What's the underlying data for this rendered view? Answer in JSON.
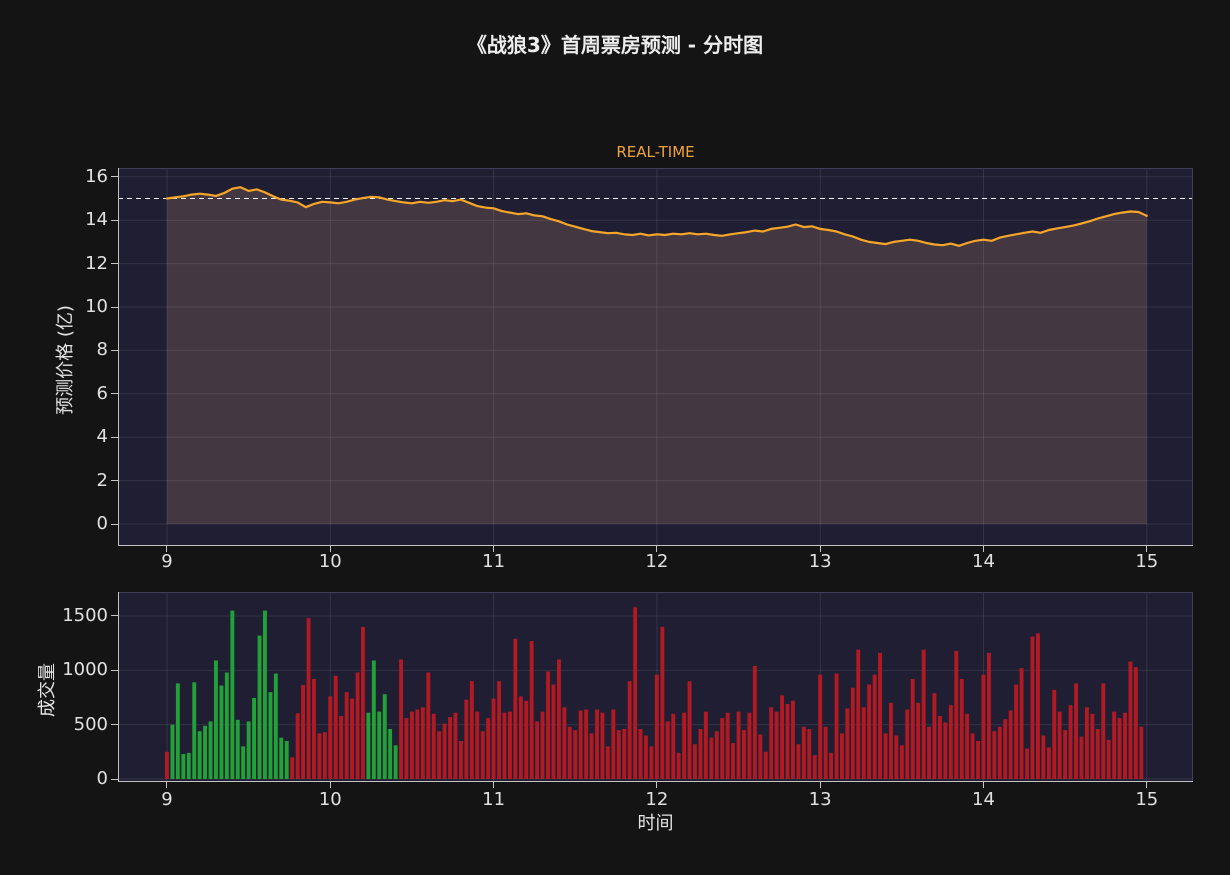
{
  "page": {
    "title": "《战狼3》首周票房预测 - 分时图",
    "subtitle": "REAL-TIME"
  },
  "colors": {
    "background": "#141414",
    "plot_background": "#201e33",
    "line": "#f7a62a",
    "area_fill": "rgba(255,195,150,0.16)",
    "up": "#21a138",
    "down": "#b11a22",
    "reference_line": "#ffffff",
    "grid": "rgba(255,255,255,0.09)",
    "spine_bright": "#c4c4c4",
    "spine_faint": "#403e58",
    "text": "#e0e0e0",
    "subtitle_text": "#f0a43a"
  },
  "chart_data": [
    {
      "type": "line",
      "title": "REAL-TIME",
      "xlabel": "",
      "ylabel": "预测价格 (亿)",
      "x_ticks": [
        9,
        10,
        11,
        12,
        13,
        14,
        15
      ],
      "y_ticks": [
        0,
        2,
        4,
        6,
        8,
        10,
        12,
        14,
        16
      ],
      "xlim": [
        8.7,
        15.28
      ],
      "ylim": [
        -1,
        16.4
      ],
      "reference_line_y": 15,
      "area_fill": true,
      "grid": true,
      "x_start": 9,
      "x_step": 0.05,
      "values": [
        15.0,
        15.05,
        15.1,
        15.18,
        15.22,
        15.18,
        15.12,
        15.25,
        15.45,
        15.52,
        15.35,
        15.42,
        15.28,
        15.1,
        14.95,
        14.9,
        14.82,
        14.6,
        14.75,
        14.85,
        14.82,
        14.78,
        14.85,
        14.95,
        15.02,
        15.08,
        15.05,
        14.95,
        14.88,
        14.82,
        14.78,
        14.85,
        14.8,
        14.85,
        14.92,
        14.88,
        14.95,
        14.8,
        14.65,
        14.58,
        14.55,
        14.42,
        14.35,
        14.28,
        14.32,
        14.22,
        14.18,
        14.05,
        13.95,
        13.8,
        13.7,
        13.6,
        13.5,
        13.45,
        13.4,
        13.42,
        13.35,
        13.32,
        13.38,
        13.3,
        13.35,
        13.32,
        13.38,
        13.35,
        13.4,
        13.35,
        13.38,
        13.32,
        13.28,
        13.35,
        13.4,
        13.45,
        13.52,
        13.48,
        13.6,
        13.65,
        13.7,
        13.8,
        13.68,
        13.72,
        13.6,
        13.55,
        13.48,
        13.35,
        13.25,
        13.1,
        13.0,
        12.95,
        12.9,
        13.0,
        13.05,
        13.1,
        13.05,
        12.95,
        12.88,
        12.85,
        12.92,
        12.82,
        12.95,
        13.05,
        13.1,
        13.05,
        13.2,
        13.28,
        13.35,
        13.42,
        13.48,
        13.42,
        13.55,
        13.62,
        13.68,
        13.75,
        13.85,
        13.95,
        14.08,
        14.18,
        14.28,
        14.35,
        14.4,
        14.38,
        14.2
      ]
    },
    {
      "type": "bar",
      "title": "",
      "xlabel": "时间",
      "ylabel": "成交量",
      "x_ticks": [
        9,
        10,
        11,
        12,
        13,
        14,
        15
      ],
      "y_ticks": [
        0,
        500,
        1000,
        1500
      ],
      "xlim": [
        8.7,
        15.28
      ],
      "ylim": [
        0,
        1720
      ],
      "grid": true,
      "x_start": 9,
      "x_step": 0.033333,
      "values": [
        250,
        500,
        880,
        230,
        240,
        890,
        440,
        490,
        530,
        1090,
        860,
        980,
        1550,
        545,
        300,
        530,
        745,
        1320,
        1550,
        800,
        970,
        380,
        350,
        200,
        605,
        865,
        1480,
        920,
        420,
        430,
        760,
        950,
        580,
        800,
        740,
        980,
        1400,
        610,
        1090,
        620,
        780,
        460,
        310,
        1100,
        560,
        620,
        640,
        660,
        980,
        600,
        440,
        510,
        570,
        610,
        350,
        730,
        900,
        620,
        440,
        560,
        740,
        900,
        610,
        620,
        1290,
        760,
        720,
        1270,
        530,
        620,
        990,
        870,
        1100,
        660,
        480,
        450,
        630,
        640,
        420,
        640,
        610,
        300,
        640,
        450,
        460,
        900,
        1580,
        460,
        400,
        300,
        960,
        1400,
        530,
        600,
        240,
        610,
        900,
        320,
        460,
        620,
        380,
        440,
        560,
        610,
        330,
        620,
        450,
        610,
        1040,
        410,
        250,
        660,
        620,
        770,
        690,
        720,
        320,
        480,
        460,
        220,
        960,
        480,
        240,
        970,
        420,
        650,
        840,
        1190,
        660,
        870,
        960,
        1160,
        420,
        700,
        400,
        310,
        640,
        920,
        700,
        1190,
        480,
        790,
        580,
        520,
        680,
        1180,
        920,
        600,
        420,
        350,
        960,
        1160,
        440,
        480,
        550,
        630,
        870,
        1020,
        280,
        1310,
        1340,
        400,
        290,
        820,
        620,
        450,
        680,
        880,
        390,
        660,
        600,
        460,
        880,
        360,
        620,
        560,
        610,
        1080,
        1030,
        480
      ],
      "directions": "duuuuuuuuuuuuuuuuuuuuuudddddddddddddduuuuuudddddddddddddddddddddddddddddddddddddddddddddddddddddddddddddddddddddddddddddddddddddddddddddddddddddddddddddddddddddddddddddddddddddddd"
    }
  ]
}
